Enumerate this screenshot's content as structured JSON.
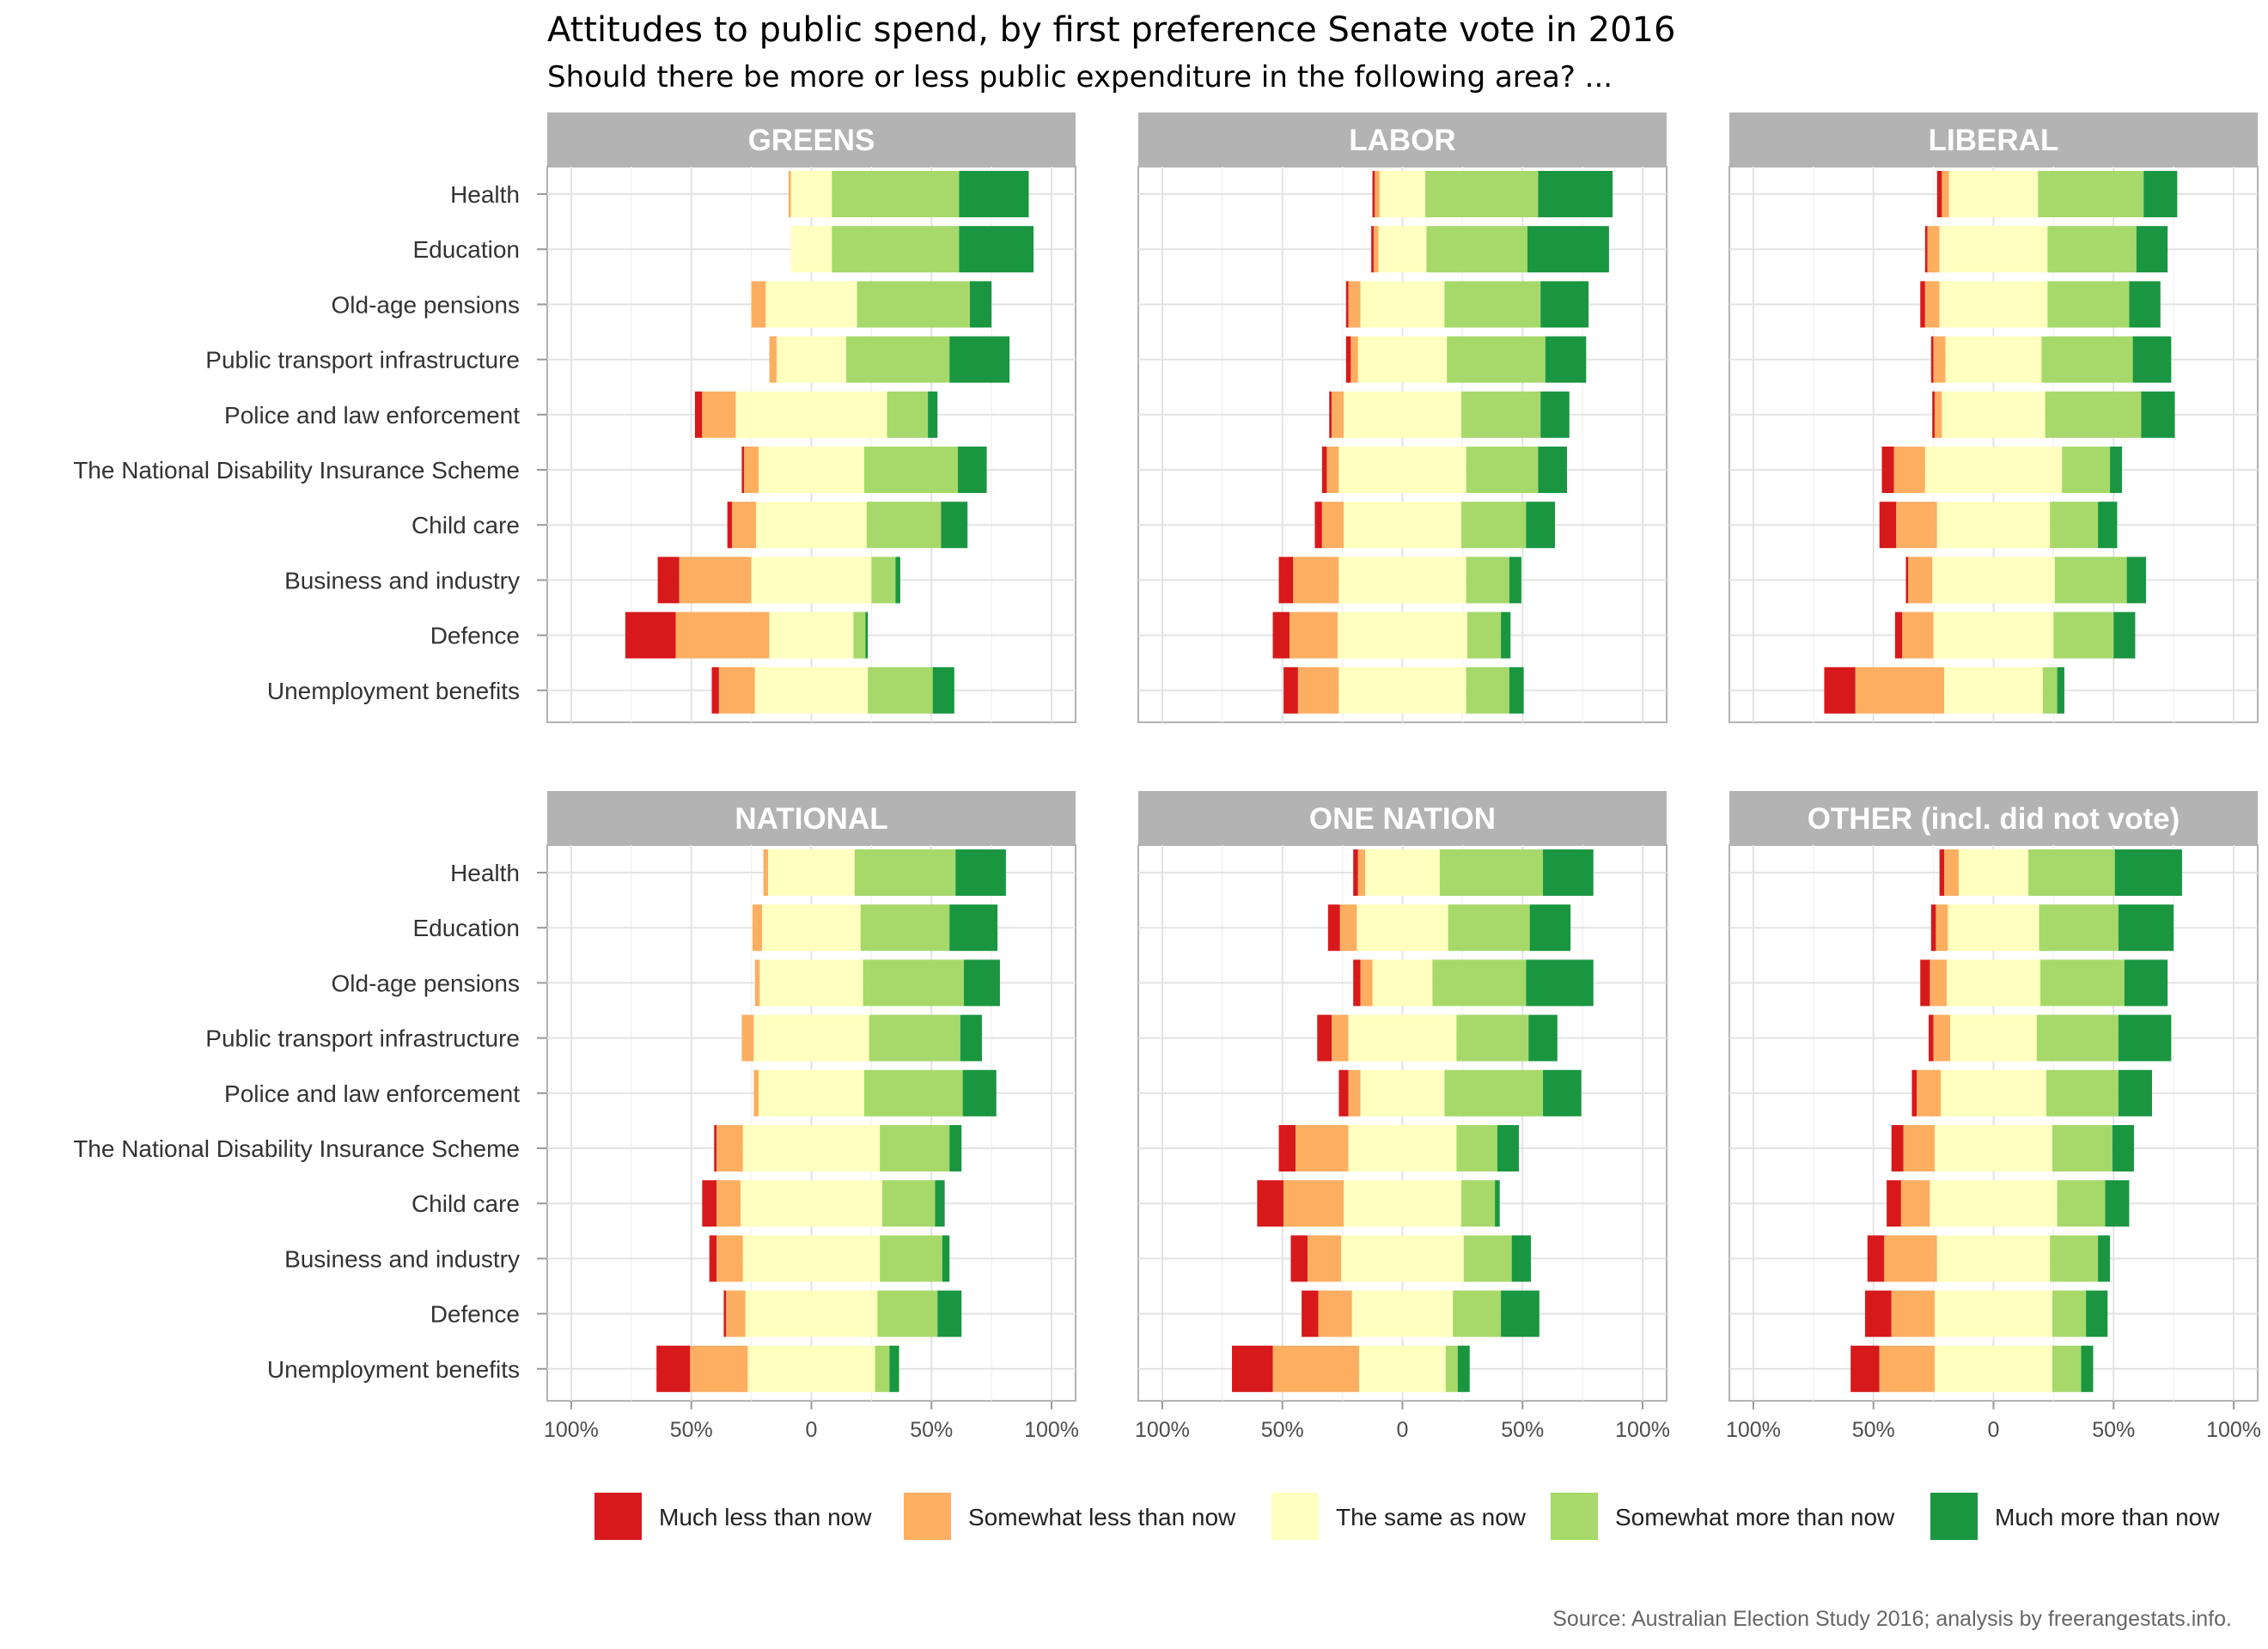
{
  "chart_data": {
    "type": "bar",
    "title": "Attitudes to public spend, by first preference Senate vote in 2016",
    "subtitle": "Should there be more or less public expenditure in the following area? ...",
    "caption": "Source: Australian Election Study 2016; analysis by freerangestats.info.",
    "categories": [
      "Health",
      "Education",
      "Old-age pensions",
      "Public transport infrastructure",
      "Police and law enforcement",
      "The National Disability Insurance Scheme",
      "Child care",
      "Business and industry",
      "Defence",
      "Unemployment benefits"
    ],
    "x_ticks": [
      "100%",
      "50%",
      "0",
      "50%",
      "100%"
    ],
    "xlim": [
      -1,
      1
    ],
    "legend": [
      {
        "label": "Much less than now",
        "color": "#d7191c"
      },
      {
        "label": "Somewhat less than now",
        "color": "#fdae61"
      },
      {
        "label": "The same as now",
        "color": "#ffffbf"
      },
      {
        "label": "Somewhat more than now",
        "color": "#a6d96a"
      },
      {
        "label": "Much more than now",
        "color": "#1a9641"
      }
    ],
    "legend_position": "bottom",
    "grid": true,
    "facets": [
      {
        "name": "GREENS",
        "values": [
          [
            0,
            1,
            17,
            53,
            29
          ],
          [
            0,
            0,
            17,
            53,
            31
          ],
          [
            0,
            6,
            38,
            47,
            9
          ],
          [
            0,
            3,
            29,
            43,
            25
          ],
          [
            3,
            14,
            63,
            17,
            4
          ],
          [
            1,
            6,
            44,
            39,
            12
          ],
          [
            2,
            10,
            46,
            31,
            11
          ],
          [
            9,
            30,
            50,
            10,
            2
          ],
          [
            21,
            39,
            35,
            5,
            1
          ],
          [
            3,
            15,
            47,
            27,
            9
          ]
        ]
      },
      {
        "name": "LABOR",
        "values": [
          [
            1,
            2,
            19,
            47,
            31
          ],
          [
            1,
            2,
            20,
            42,
            34
          ],
          [
            1,
            5,
            35,
            40,
            20
          ],
          [
            2,
            3,
            37,
            41,
            17
          ],
          [
            1,
            5,
            49,
            33,
            12
          ],
          [
            2,
            5,
            53,
            30,
            12
          ],
          [
            3,
            9,
            49,
            27,
            12
          ],
          [
            6,
            19,
            53,
            18,
            5
          ],
          [
            7,
            20,
            54,
            14,
            4
          ],
          [
            6,
            17,
            53,
            18,
            6
          ]
        ]
      },
      {
        "name": "LIBERAL",
        "values": [
          [
            2,
            3,
            37,
            44,
            14
          ],
          [
            1,
            5,
            45,
            37,
            13
          ],
          [
            2,
            6,
            45,
            34,
            13
          ],
          [
            1,
            5,
            40,
            38,
            16
          ],
          [
            1,
            3,
            43,
            40,
            14
          ],
          [
            5,
            13,
            57,
            20,
            5
          ],
          [
            7,
            17,
            47,
            20,
            8
          ],
          [
            1,
            10,
            51,
            30,
            8
          ],
          [
            3,
            13,
            50,
            25,
            9
          ],
          [
            13,
            37,
            41,
            6,
            3
          ]
        ]
      },
      {
        "name": "NATIONAL",
        "values": [
          [
            0,
            2,
            36,
            42,
            21
          ],
          [
            0,
            4,
            41,
            37,
            20
          ],
          [
            0,
            2,
            43,
            42,
            15
          ],
          [
            0,
            5,
            48,
            38,
            9
          ],
          [
            0,
            2,
            44,
            41,
            14
          ],
          [
            1,
            11,
            57,
            29,
            5
          ],
          [
            6,
            10,
            59,
            22,
            4
          ],
          [
            3,
            11,
            57,
            26,
            3
          ],
          [
            1,
            8,
            55,
            25,
            10
          ],
          [
            14,
            24,
            53,
            6,
            4
          ]
        ]
      },
      {
        "name": "ONE NATION",
        "values": [
          [
            2,
            3,
            31,
            43,
            21
          ],
          [
            5,
            7,
            38,
            34,
            17
          ],
          [
            3,
            5,
            25,
            39,
            28
          ],
          [
            6,
            7,
            45,
            30,
            12
          ],
          [
            4,
            5,
            35,
            41,
            16
          ],
          [
            7,
            22,
            45,
            17,
            9
          ],
          [
            11,
            25,
            49,
            14,
            2
          ],
          [
            7,
            14,
            51,
            20,
            8
          ],
          [
            7,
            14,
            42,
            20,
            16
          ],
          [
            17,
            36,
            36,
            5,
            5
          ]
        ]
      },
      {
        "name": "OTHER (incl. did not vote)",
        "values": [
          [
            2,
            6,
            29,
            36,
            28
          ],
          [
            2,
            5,
            38,
            33,
            23
          ],
          [
            4,
            7,
            39,
            35,
            18
          ],
          [
            2,
            7,
            36,
            34,
            22
          ],
          [
            2,
            10,
            44,
            30,
            14
          ],
          [
            5,
            13,
            49,
            25,
            9
          ],
          [
            6,
            12,
            53,
            20,
            10
          ],
          [
            7,
            22,
            47,
            20,
            5
          ],
          [
            11,
            18,
            49,
            14,
            9
          ],
          [
            12,
            23,
            49,
            12,
            5
          ]
        ]
      }
    ]
  }
}
